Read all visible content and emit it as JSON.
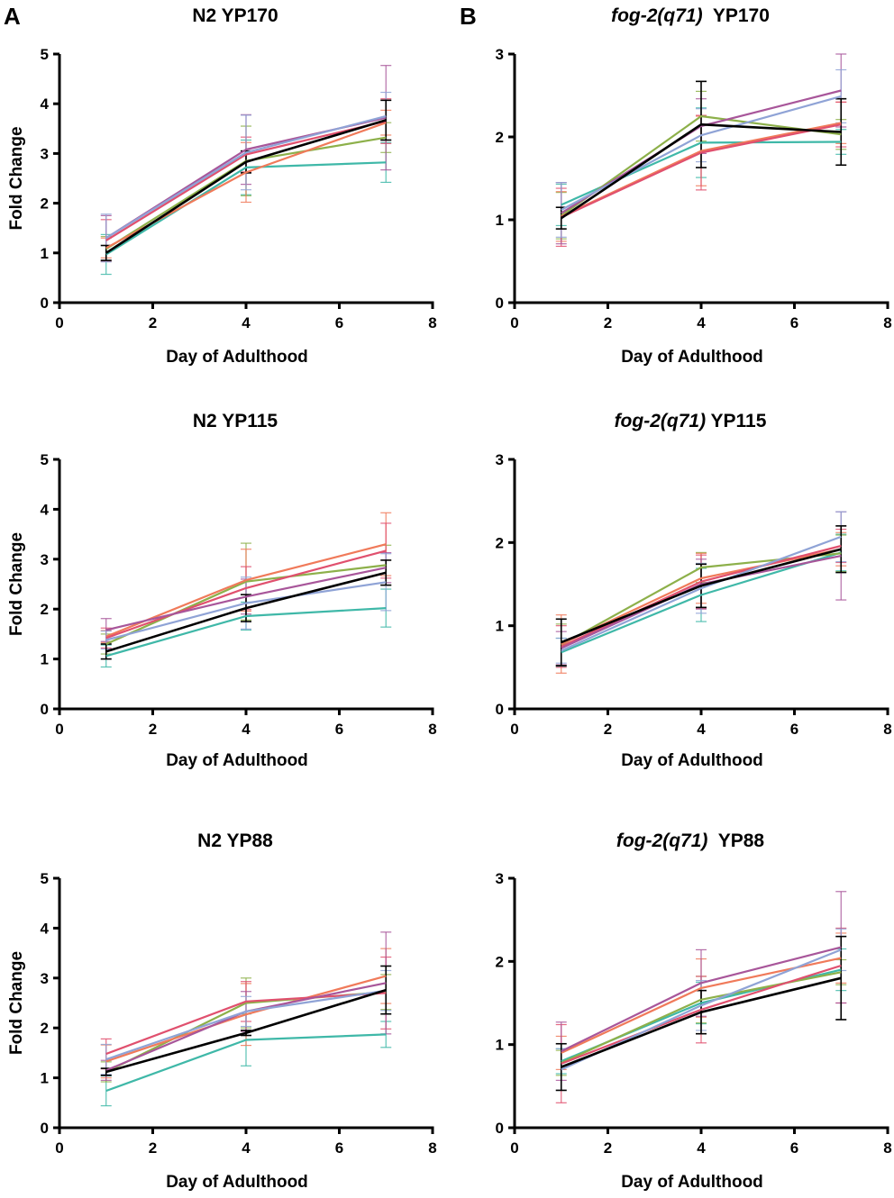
{
  "panel_letters": [
    "A",
    "B"
  ],
  "series_colors": {
    "teal": "#3fb8a8",
    "green": "#8db04a",
    "orange": "#f07a5a",
    "red": "#e0506e",
    "purple": "#a8569a",
    "blue": "#8fa3d6",
    "black": "#000000"
  },
  "chart_data": [
    {
      "id": "n2-yp170",
      "type": "line",
      "panel_letter": "A",
      "title_parts": [
        {
          "text": "N2 YP170",
          "italic": false
        }
      ],
      "xlabel": "Day of Adulthood",
      "ylabel": "Fold Change",
      "xlim": [
        0,
        8
      ],
      "ylim": [
        0,
        5
      ],
      "xticks": [
        0,
        2,
        4,
        6,
        8
      ],
      "yticks": [
        0,
        1,
        2,
        3,
        4,
        5
      ],
      "x": [
        1,
        4,
        7
      ],
      "series": [
        {
          "name": "teal",
          "values": [
            0.97,
            2.72,
            2.82
          ],
          "err": [
            0.4,
            0.55,
            0.4
          ]
        },
        {
          "name": "green",
          "values": [
            1.08,
            2.85,
            3.32
          ],
          "err": [
            0.25,
            0.7,
            0.3
          ]
        },
        {
          "name": "orange",
          "values": [
            1.1,
            2.62,
            3.62
          ],
          "err": [
            0.2,
            0.6,
            0.25
          ]
        },
        {
          "name": "red",
          "values": [
            1.25,
            2.98,
            3.65
          ],
          "err": [
            0.42,
            0.35,
            0.45
          ]
        },
        {
          "name": "purple",
          "values": [
            1.3,
            3.08,
            3.72
          ],
          "err": [
            0.45,
            0.7,
            1.05
          ]
        },
        {
          "name": "blue",
          "values": [
            1.3,
            3.02,
            3.75
          ],
          "err": [
            0.48,
            0.75,
            0.48
          ]
        },
        {
          "name": "black",
          "values": [
            1.0,
            2.83,
            3.67
          ],
          "err": [
            0.15,
            0.22,
            0.4
          ]
        }
      ]
    },
    {
      "id": "fog2-yp170",
      "type": "line",
      "panel_letter": "B",
      "title_parts": [
        {
          "text": "fog-2(q71)",
          "italic": true
        },
        {
          "text": "  YP170",
          "italic": false
        }
      ],
      "xlabel": "Day of Adulthood",
      "ylabel": "",
      "xlim": [
        0,
        8
      ],
      "ylim": [
        0,
        3
      ],
      "xticks": [
        0,
        2,
        4,
        6,
        8
      ],
      "yticks": [
        0,
        1,
        2,
        3
      ],
      "x": [
        1,
        4,
        7
      ],
      "series": [
        {
          "name": "teal",
          "values": [
            1.18,
            1.93,
            1.94
          ],
          "err": [
            0.25,
            0.42,
            0.15
          ]
        },
        {
          "name": "green",
          "values": [
            1.05,
            2.25,
            2.03
          ],
          "err": [
            0.28,
            0.3,
            0.18
          ]
        },
        {
          "name": "orange",
          "values": [
            1.04,
            1.83,
            2.17
          ],
          "err": [
            0.3,
            0.42,
            0.25
          ]
        },
        {
          "name": "red",
          "values": [
            1.03,
            1.81,
            2.15
          ],
          "err": [
            0.35,
            0.45,
            0.27
          ]
        },
        {
          "name": "purple",
          "values": [
            1.08,
            2.13,
            2.56
          ],
          "err": [
            0.37,
            0.33,
            0.44
          ]
        },
        {
          "name": "blue",
          "values": [
            1.12,
            2.02,
            2.49
          ],
          "err": [
            0.33,
            0.32,
            0.32
          ]
        },
        {
          "name": "black",
          "values": [
            1.02,
            2.15,
            2.06
          ],
          "err": [
            0.13,
            0.52,
            0.4
          ]
        }
      ]
    },
    {
      "id": "n2-yp115",
      "type": "line",
      "panel_letter": "",
      "title_parts": [
        {
          "text": "N2 YP115",
          "italic": false
        }
      ],
      "xlabel": "Day of Adulthood",
      "ylabel": "Fold Change",
      "xlim": [
        0,
        8
      ],
      "ylim": [
        0,
        5
      ],
      "xticks": [
        0,
        2,
        4,
        6,
        8
      ],
      "yticks": [
        0,
        1,
        2,
        3,
        4,
        5
      ],
      "x": [
        1,
        4,
        7
      ],
      "series": [
        {
          "name": "teal",
          "values": [
            1.06,
            1.86,
            2.02
          ],
          "err": [
            0.22,
            0.28,
            0.38
          ]
        },
        {
          "name": "green",
          "values": [
            1.3,
            2.55,
            2.88
          ],
          "err": [
            0.2,
            0.77,
            0.4
          ]
        },
        {
          "name": "orange",
          "values": [
            1.45,
            2.58,
            3.3
          ],
          "err": [
            0.12,
            0.62,
            0.63
          ]
        },
        {
          "name": "red",
          "values": [
            1.42,
            2.42,
            3.17
          ],
          "err": [
            0.2,
            0.43,
            0.55
          ]
        },
        {
          "name": "purple",
          "values": [
            1.58,
            2.25,
            2.83
          ],
          "err": [
            0.23,
            0.35,
            0.3
          ]
        },
        {
          "name": "blue",
          "values": [
            1.38,
            2.12,
            2.54
          ],
          "err": [
            0.18,
            0.52,
            0.57
          ]
        },
        {
          "name": "black",
          "values": [
            1.15,
            2.02,
            2.73
          ],
          "err": [
            0.15,
            0.27,
            0.25
          ]
        }
      ]
    },
    {
      "id": "fog2-yp115",
      "type": "line",
      "panel_letter": "",
      "title_parts": [
        {
          "text": "fog-2(q71)",
          "italic": true
        },
        {
          "text": " YP115",
          "italic": false
        }
      ],
      "xlabel": "Day of Adulthood",
      "ylabel": "",
      "xlim": [
        0,
        8
      ],
      "ylim": [
        0,
        3
      ],
      "xticks": [
        0,
        2,
        4,
        6,
        8
      ],
      "yticks": [
        0,
        1,
        2,
        3
      ],
      "x": [
        1,
        4,
        7
      ],
      "series": [
        {
          "name": "teal",
          "values": [
            0.68,
            1.37,
            1.88
          ],
          "err": [
            0.17,
            0.32,
            0.22
          ]
        },
        {
          "name": "green",
          "values": [
            0.77,
            1.7,
            1.87
          ],
          "err": [
            0.25,
            0.18,
            0.22
          ]
        },
        {
          "name": "orange",
          "values": [
            0.78,
            1.57,
            1.92
          ],
          "err": [
            0.35,
            0.3,
            0.2
          ]
        },
        {
          "name": "red",
          "values": [
            0.75,
            1.53,
            1.96
          ],
          "err": [
            0.25,
            0.32,
            0.2
          ]
        },
        {
          "name": "purple",
          "values": [
            0.73,
            1.5,
            1.84
          ],
          "err": [
            0.2,
            0.3,
            0.53
          ]
        },
        {
          "name": "blue",
          "values": [
            0.7,
            1.45,
            2.07
          ],
          "err": [
            0.15,
            0.3,
            0.3
          ]
        },
        {
          "name": "black",
          "values": [
            0.8,
            1.48,
            1.92
          ],
          "err": [
            0.28,
            0.26,
            0.28
          ]
        }
      ]
    },
    {
      "id": "n2-yp88",
      "type": "line",
      "panel_letter": "",
      "title_parts": [
        {
          "text": "N2 YP88",
          "italic": false
        }
      ],
      "xlabel": "Day of Adulthood",
      "ylabel": "Fold Change",
      "xlim": [
        0,
        8
      ],
      "ylim": [
        0,
        5
      ],
      "xticks": [
        0,
        2,
        4,
        6,
        8
      ],
      "yticks": [
        0,
        1,
        2,
        3,
        4,
        5
      ],
      "x": [
        1,
        4,
        7
      ],
      "series": [
        {
          "name": "teal",
          "values": [
            0.74,
            1.76,
            1.87
          ],
          "err": [
            0.3,
            0.52,
            0.26
          ]
        },
        {
          "name": "green",
          "values": [
            1.12,
            2.5,
            2.72
          ],
          "err": [
            0.2,
            0.5,
            0.35
          ]
        },
        {
          "name": "orange",
          "values": [
            1.33,
            2.27,
            3.04
          ],
          "err": [
            0.33,
            0.62,
            0.55
          ]
        },
        {
          "name": "red",
          "values": [
            1.48,
            2.53,
            2.7
          ],
          "err": [
            0.3,
            0.4,
            0.72
          ]
        },
        {
          "name": "purple",
          "values": [
            1.15,
            2.33,
            2.9
          ],
          "err": [
            0.2,
            0.4,
            1.02
          ]
        },
        {
          "name": "blue",
          "values": [
            1.37,
            2.33,
            2.75
          ],
          "err": [
            0.3,
            0.3,
            0.4
          ]
        },
        {
          "name": "black",
          "values": [
            1.12,
            1.9,
            2.76
          ],
          "err": [
            0.07,
            0.05,
            0.48
          ]
        }
      ]
    },
    {
      "id": "fog2-yp88",
      "type": "line",
      "panel_letter": "",
      "title_parts": [
        {
          "text": "fog-2(q71)",
          "italic": true
        },
        {
          "text": "  YP88",
          "italic": false
        }
      ],
      "xlabel": "Day of Adulthood",
      "ylabel": "",
      "xlim": [
        0,
        8
      ],
      "ylim": [
        0,
        3
      ],
      "xticks": [
        0,
        2,
        4,
        6,
        8
      ],
      "yticks": [
        0,
        1,
        2,
        3
      ],
      "x": [
        1,
        4,
        7
      ],
      "series": [
        {
          "name": "teal",
          "values": [
            0.8,
            1.5,
            1.9
          ],
          "err": [
            0.15,
            0.25,
            0.25
          ]
        },
        {
          "name": "green",
          "values": [
            0.78,
            1.54,
            1.87
          ],
          "err": [
            0.15,
            0.28,
            0.15
          ]
        },
        {
          "name": "orange",
          "values": [
            0.9,
            1.68,
            2.04
          ],
          "err": [
            0.2,
            0.35,
            0.3
          ]
        },
        {
          "name": "red",
          "values": [
            0.77,
            1.42,
            1.95
          ],
          "err": [
            0.47,
            0.4,
            0.45
          ]
        },
        {
          "name": "purple",
          "values": [
            0.92,
            1.74,
            2.17
          ],
          "err": [
            0.35,
            0.4,
            0.67
          ]
        },
        {
          "name": "blue",
          "values": [
            0.7,
            1.47,
            2.14
          ],
          "err": [
            0.25,
            0.3,
            0.25
          ]
        },
        {
          "name": "black",
          "values": [
            0.73,
            1.39,
            1.8
          ],
          "err": [
            0.28,
            0.26,
            0.5
          ]
        }
      ]
    }
  ]
}
